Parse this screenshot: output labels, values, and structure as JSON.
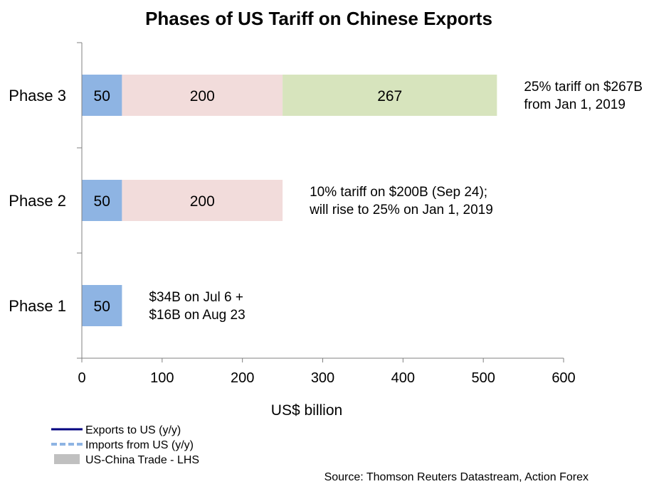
{
  "chart_data": {
    "type": "bar",
    "orientation": "horizontal",
    "stacked": true,
    "title": "Phases of US Tariff on Chinese Exports",
    "xlabel": "US$ billion",
    "xlim": [
      0,
      600
    ],
    "xticks": [
      "0",
      "100",
      "200",
      "300",
      "400",
      "500",
      "600"
    ],
    "grid": false,
    "categories": [
      "Phase 3",
      "Phase 2",
      "Phase 1"
    ],
    "series": [
      {
        "color": "#8eb4e3",
        "values": [
          50,
          50,
          50
        ]
      },
      {
        "color": "#f2dcdb",
        "values": [
          200,
          200,
          null
        ]
      },
      {
        "color": "#d7e4bd",
        "values": [
          267,
          null,
          null
        ]
      }
    ],
    "annotations": [
      {
        "category": "Phase 3",
        "lines": [
          "25% tariff on $267B",
          "from Jan 1, 2019"
        ]
      },
      {
        "category": "Phase 2",
        "lines": [
          "10% tariff on $200B (Sep 24);",
          "will rise to 25% on Jan 1, 2019"
        ]
      },
      {
        "category": "Phase 1",
        "lines": [
          "$34B on Jul 6 +",
          "$16B on Aug 23"
        ]
      }
    ],
    "legend": {
      "placement": "bottom-left",
      "items": [
        {
          "label": "Exports to US (y/y)",
          "style": "solid-line",
          "color": "#000080"
        },
        {
          "label": "Imports from US (y/y)",
          "style": "dashed-line",
          "color": "#8eb4e3"
        },
        {
          "label": "US-China Trade - LHS",
          "style": "box",
          "color": "#c0c0c0"
        }
      ]
    },
    "source": "Source: Thomson Reuters Datastream, Action Forex"
  }
}
